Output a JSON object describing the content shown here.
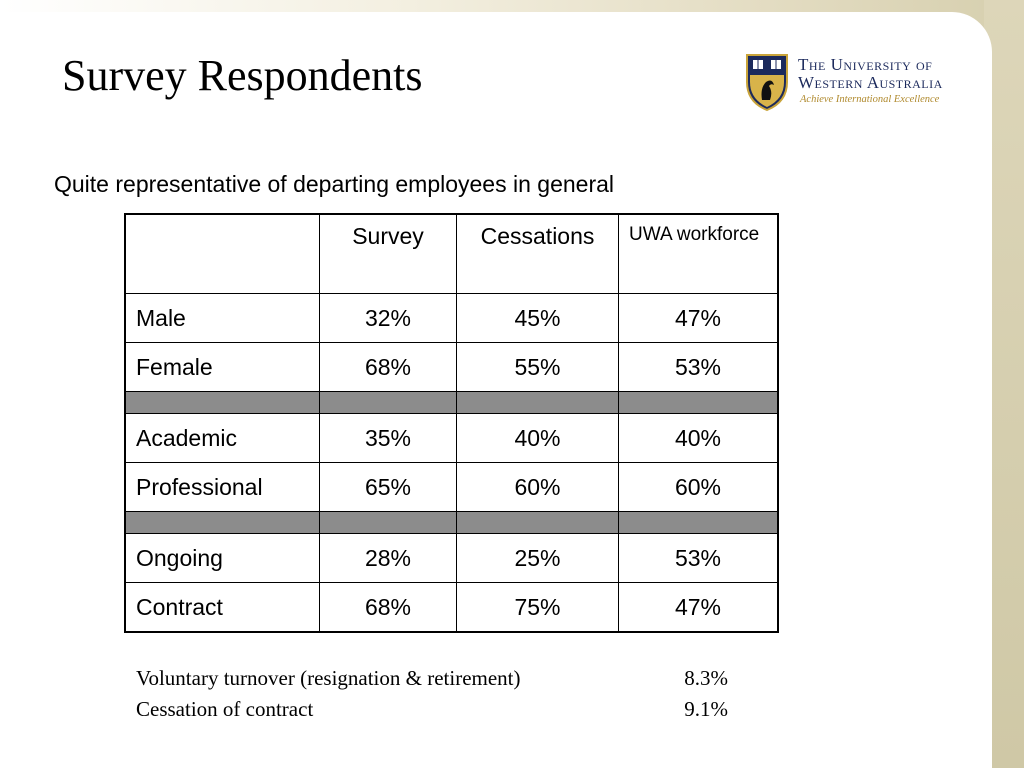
{
  "title": "Survey Respondents",
  "logo": {
    "line1": "The University of",
    "line2": "Western Australia",
    "tagline": "Achieve International Excellence",
    "colors": {
      "navy": "#1c2a5c",
      "gold": "#c9a43a"
    }
  },
  "subtitle": "Quite representative of departing employees in general",
  "table": {
    "headers": [
      "",
      "Survey",
      "Cessations",
      "UWA workforce"
    ],
    "groups": [
      [
        {
          "label": "Male",
          "survey": "32%",
          "cessations": "45%",
          "workforce": "47%"
        },
        {
          "label": "Female",
          "survey": "68%",
          "cessations": "55%",
          "workforce": "53%"
        }
      ],
      [
        {
          "label": "Academic",
          "survey": "35%",
          "cessations": "40%",
          "workforce": "40%"
        },
        {
          "label": "Professional",
          "survey": "65%",
          "cessations": "60%",
          "workforce": "60%"
        }
      ],
      [
        {
          "label": "Ongoing",
          "survey": "28%",
          "cessations": "25%",
          "workforce": "53%"
        },
        {
          "label": "Contract",
          "survey": "68%",
          "cessations": "75%",
          "workforce": "47%"
        }
      ]
    ]
  },
  "notes": [
    {
      "label": "Voluntary turnover (resignation & retirement)",
      "value": "8.3%"
    },
    {
      "label": "Cessation of contract",
      "value": "9.1%"
    }
  ]
}
